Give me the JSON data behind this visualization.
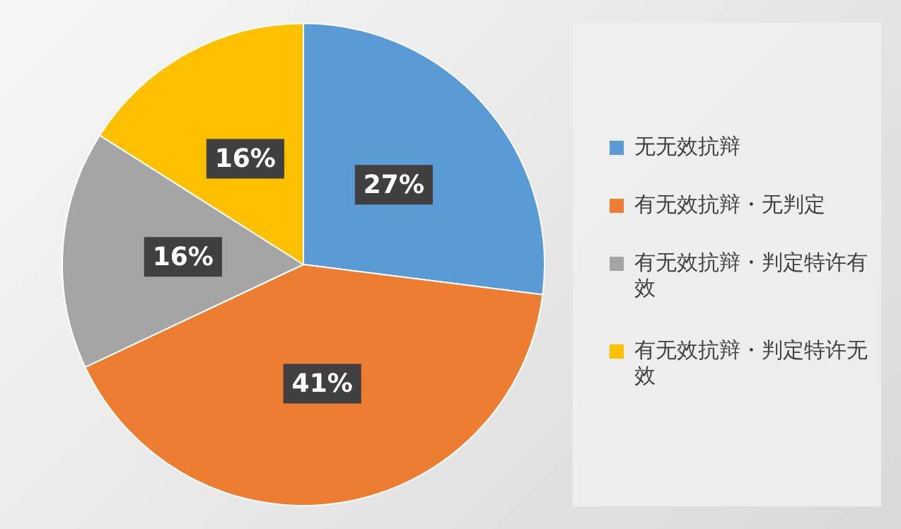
{
  "chart_data": {
    "type": "pie",
    "categories": [
      "无无效抗辩",
      "有无效抗辩・无判定",
      "有无效抗辩・判定特许有效",
      "有无效抗辩・判定特许无效"
    ],
    "values": [
      27,
      41,
      16,
      16
    ],
    "value_labels": [
      "27%",
      "41%",
      "16%",
      "16%"
    ],
    "colors": [
      "#5b9bd5",
      "#ed7d31",
      "#a5a5a5",
      "#ffc000"
    ],
    "legend": "right"
  }
}
